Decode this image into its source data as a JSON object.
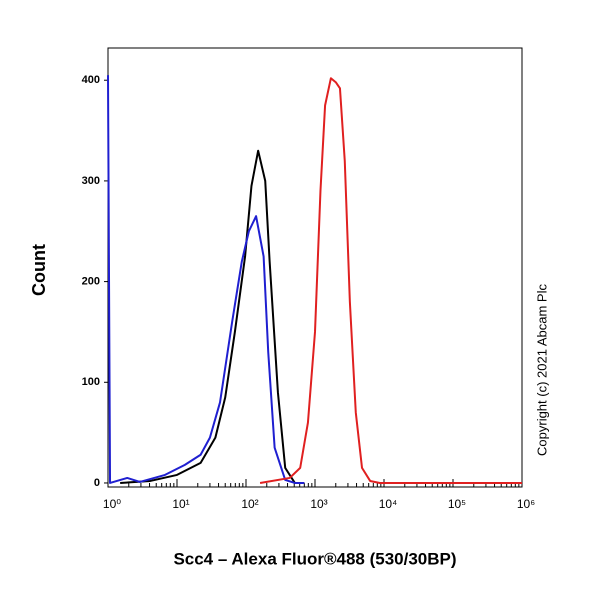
{
  "chart_data": {
    "type": "line",
    "xscale": "log",
    "ylabel": "Count",
    "xlabel": "Scc4 – Alexa Fluor®488 (530/30BP)",
    "annotation": "Copyright (c) 2021 Abcam Plc",
    "xlim": [
      1,
      1000000
    ],
    "xticks": [
      {
        "value": 1,
        "label": "10⁰"
      },
      {
        "value": 10,
        "label": "10¹"
      },
      {
        "value": 100,
        "label": "10²"
      },
      {
        "value": 1000,
        "label": "10³"
      },
      {
        "value": 10000,
        "label": "10⁴"
      },
      {
        "value": 100000,
        "label": "10⁵"
      },
      {
        "value": 1000000,
        "label": "10⁶"
      }
    ],
    "xminorticks": [
      2,
      3,
      4,
      5,
      6,
      7,
      8,
      9,
      20,
      30,
      40,
      50,
      60,
      70,
      80,
      90,
      200,
      300,
      400,
      500,
      600,
      700,
      800,
      900,
      2000,
      3000,
      4000,
      5000,
      6000,
      7000,
      8000,
      9000,
      20000,
      30000,
      40000,
      50000,
      60000,
      70000,
      80000,
      90000,
      200000,
      300000,
      400000,
      500000,
      600000,
      700000,
      800000,
      900000
    ],
    "ylim": [
      -4,
      432
    ],
    "yticks": [
      0,
      100,
      200,
      300,
      400
    ],
    "series": [
      {
        "color": "#000000",
        "x": [
          1.5,
          4.1,
          10,
          22,
          36,
          50,
          69,
          97,
          120,
          150,
          190,
          220,
          290,
          370,
          510,
          700
        ],
        "values": [
          0,
          2,
          8,
          20,
          45,
          85,
          150,
          225,
          295,
          330,
          300,
          220,
          90,
          15,
          0,
          0
        ]
      },
      {
        "color": "#1f1fd0",
        "x": [
          1,
          1.07,
          1.9,
          2.9,
          6.7,
          13,
          22,
          30,
          42,
          63,
          87,
          110,
          140,
          180,
          210,
          260,
          370,
          510,
          700
        ],
        "values": [
          405,
          0,
          5,
          1,
          8,
          18,
          28,
          45,
          80,
          160,
          220,
          250,
          265,
          225,
          130,
          35,
          3,
          0,
          0
        ]
      },
      {
        "color": "#e02020",
        "x": [
          160,
          430,
          610,
          790,
          1000,
          1200,
          1400,
          1700,
          2000,
          2300,
          2700,
          3200,
          3900,
          4800,
          6300,
          8700,
          1000000
        ],
        "values": [
          0,
          5,
          15,
          60,
          150,
          290,
          375,
          402,
          398,
          392,
          320,
          180,
          70,
          15,
          2,
          0,
          0
        ]
      }
    ]
  }
}
